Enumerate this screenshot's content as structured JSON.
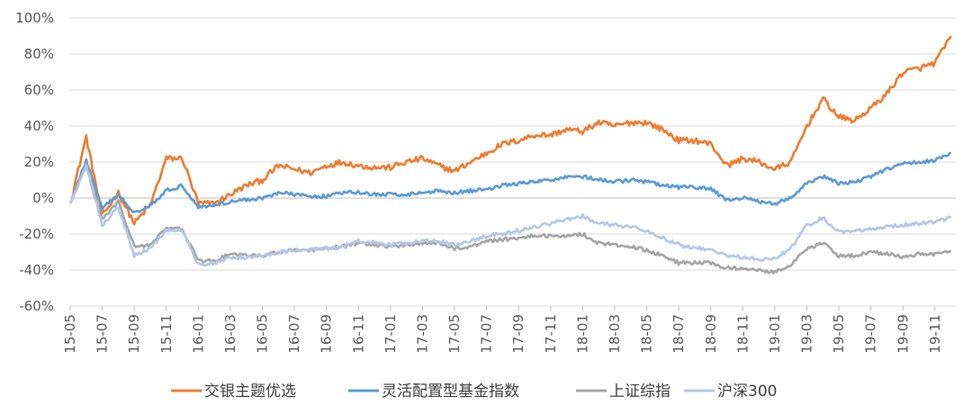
{
  "chart_data": {
    "type": "line",
    "title": "",
    "xlabel": "",
    "ylabel": "",
    "ylim": [
      -60,
      100
    ],
    "y_unit": "%",
    "grid": "horizontal",
    "legend_position": "bottom",
    "x_tick_labels": [
      "15-05",
      "15-07",
      "15-09",
      "15-11",
      "16-01",
      "16-03",
      "16-05",
      "16-07",
      "16-09",
      "16-11",
      "17-01",
      "17-03",
      "17-05",
      "17-07",
      "17-09",
      "17-11",
      "18-01",
      "18-03",
      "18-05",
      "18-07",
      "18-09",
      "18-11",
      "19-01",
      "19-03",
      "19-05",
      "19-07",
      "19-09",
      "19-11"
    ],
    "y_tick_labels": [
      "-60%",
      "-40%",
      "-20%",
      "0%",
      "20%",
      "40%",
      "60%",
      "80%",
      "100%"
    ],
    "y_ticks": [
      -60,
      -40,
      -20,
      0,
      20,
      40,
      60,
      80,
      100
    ],
    "x": [
      "2015-05",
      "2015-06",
      "2015-07",
      "2015-08",
      "2015-09",
      "2015-10",
      "2015-11",
      "2015-12",
      "2016-01",
      "2016-02",
      "2016-03",
      "2016-04",
      "2016-05",
      "2016-06",
      "2016-07",
      "2016-08",
      "2016-09",
      "2016-10",
      "2016-11",
      "2016-12",
      "2017-01",
      "2017-02",
      "2017-03",
      "2017-04",
      "2017-05",
      "2017-06",
      "2017-07",
      "2017-08",
      "2017-09",
      "2017-10",
      "2017-11",
      "2017-12",
      "2018-01",
      "2018-02",
      "2018-03",
      "2018-04",
      "2018-05",
      "2018-06",
      "2018-07",
      "2018-08",
      "2018-09",
      "2018-10",
      "2018-11",
      "2018-12",
      "2019-01",
      "2019-02",
      "2019-03",
      "2019-04",
      "2019-05",
      "2019-06",
      "2019-07",
      "2019-08",
      "2019-09",
      "2019-10",
      "2019-11",
      "2019-12"
    ],
    "series": [
      {
        "name": "交银主题优选",
        "color": "#ED7D31",
        "values": [
          -3,
          34,
          -10,
          3,
          -14,
          -4,
          22,
          22,
          -3,
          -3,
          2,
          7,
          10,
          18,
          16,
          14,
          18,
          20,
          18,
          17,
          17,
          20,
          22,
          18,
          15,
          20,
          25,
          30,
          32,
          35,
          35,
          38,
          37,
          42,
          40,
          42,
          42,
          38,
          32,
          32,
          30,
          18,
          22,
          20,
          16,
          20,
          40,
          55,
          45,
          43,
          50,
          58,
          70,
          72,
          75,
          90
        ]
      },
      {
        "name": "灵活配置型基金指数",
        "color": "#5B9BD5",
        "values": [
          -3,
          21,
          -6,
          2,
          -8,
          -4,
          4,
          7,
          -5,
          -4,
          -2,
          -1,
          0,
          3,
          2,
          1,
          1,
          3,
          3,
          2,
          2,
          2,
          3,
          4,
          3,
          4,
          5,
          7,
          8,
          9,
          10,
          12,
          12,
          10,
          9,
          10,
          9,
          7,
          6,
          6,
          5,
          -1,
          0,
          -2,
          -3,
          0,
          8,
          12,
          8,
          9,
          12,
          16,
          19,
          20,
          21,
          25
        ]
      },
      {
        "name": "上证综指",
        "color": "#A5A5A5",
        "values": [
          -3,
          19,
          -12,
          -2,
          -27,
          -26,
          -17,
          -17,
          -35,
          -35,
          -31,
          -32,
          -32,
          -30,
          -29,
          -29,
          -28,
          -27,
          -25,
          -26,
          -27,
          -26,
          -25,
          -25,
          -28,
          -27,
          -24,
          -23,
          -22,
          -21,
          -21,
          -21,
          -20,
          -25,
          -26,
          -27,
          -29,
          -32,
          -36,
          -36,
          -36,
          -39,
          -39,
          -40,
          -41,
          -37,
          -28,
          -25,
          -32,
          -32,
          -30,
          -31,
          -33,
          -31,
          -31,
          -30
        ]
      },
      {
        "name": "沪深300",
        "color": "#B4C7E7",
        "values": [
          -3,
          18,
          -15,
          -5,
          -32,
          -28,
          -18,
          -18,
          -37,
          -36,
          -33,
          -33,
          -32,
          -30,
          -29,
          -29,
          -28,
          -27,
          -24,
          -25,
          -26,
          -25,
          -24,
          -24,
          -26,
          -24,
          -21,
          -20,
          -18,
          -16,
          -14,
          -12,
          -10,
          -14,
          -15,
          -16,
          -18,
          -22,
          -26,
          -28,
          -28,
          -32,
          -33,
          -34,
          -34,
          -28,
          -15,
          -11,
          -19,
          -18,
          -17,
          -16,
          -15,
          -14,
          -13,
          -11
        ]
      }
    ]
  }
}
